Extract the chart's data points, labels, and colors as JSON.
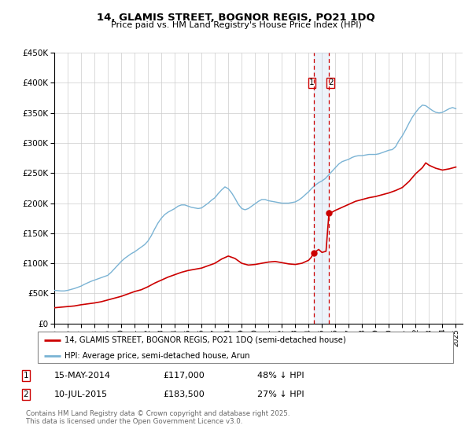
{
  "title": "14, GLAMIS STREET, BOGNOR REGIS, PO21 1DQ",
  "subtitle": "Price paid vs. HM Land Registry's House Price Index (HPI)",
  "legend_line1": "14, GLAMIS STREET, BOGNOR REGIS, PO21 1DQ (semi-detached house)",
  "legend_line2": "HPI: Average price, semi-detached house, Arun",
  "hpi_color": "#7ab3d4",
  "price_color": "#cc0000",
  "vline_color": "#cc0000",
  "vband_color": "#c6d9f1",
  "footnote": "Contains HM Land Registry data © Crown copyright and database right 2025.\nThis data is licensed under the Open Government Licence v3.0.",
  "transaction1_date": "15-MAY-2014",
  "transaction1_price": "£117,000",
  "transaction1_hpi": "48% ↓ HPI",
  "transaction1_year": 2014.37,
  "transaction1_price_val": 117000,
  "transaction2_date": "10-JUL-2015",
  "transaction2_price": "£183,500",
  "transaction2_hpi": "27% ↓ HPI",
  "transaction2_year": 2015.52,
  "transaction2_price_val": 183500,
  "ylim": [
    0,
    450000
  ],
  "yticks": [
    0,
    50000,
    100000,
    150000,
    200000,
    250000,
    300000,
    350000,
    400000,
    450000
  ],
  "xlim_start": 1995.0,
  "xlim_end": 2025.5,
  "background_color": "#ffffff",
  "grid_color": "#cccccc",
  "hpi_data": [
    [
      1995.0,
      55000
    ],
    [
      1995.25,
      54500
    ],
    [
      1995.5,
      54000
    ],
    [
      1995.75,
      54000
    ],
    [
      1996.0,
      55000
    ],
    [
      1996.25,
      56500
    ],
    [
      1996.5,
      58000
    ],
    [
      1996.75,
      60000
    ],
    [
      1997.0,
      62000
    ],
    [
      1997.25,
      65000
    ],
    [
      1997.5,
      67500
    ],
    [
      1997.75,
      70000
    ],
    [
      1998.0,
      72000
    ],
    [
      1998.25,
      74000
    ],
    [
      1998.5,
      76000
    ],
    [
      1998.75,
      78000
    ],
    [
      1999.0,
      80000
    ],
    [
      1999.25,
      85000
    ],
    [
      1999.5,
      91000
    ],
    [
      1999.75,
      97000
    ],
    [
      2000.0,
      103000
    ],
    [
      2000.25,
      108000
    ],
    [
      2000.5,
      112000
    ],
    [
      2000.75,
      116000
    ],
    [
      2001.0,
      119000
    ],
    [
      2001.25,
      123000
    ],
    [
      2001.5,
      127000
    ],
    [
      2001.75,
      131000
    ],
    [
      2002.0,
      137000
    ],
    [
      2002.25,
      146000
    ],
    [
      2002.5,
      157000
    ],
    [
      2002.75,
      167000
    ],
    [
      2003.0,
      175000
    ],
    [
      2003.25,
      181000
    ],
    [
      2003.5,
      185000
    ],
    [
      2003.75,
      188000
    ],
    [
      2004.0,
      191000
    ],
    [
      2004.25,
      195000
    ],
    [
      2004.5,
      197000
    ],
    [
      2004.75,
      197000
    ],
    [
      2005.0,
      195000
    ],
    [
      2005.25,
      193000
    ],
    [
      2005.5,
      192000
    ],
    [
      2005.75,
      191000
    ],
    [
      2006.0,
      192000
    ],
    [
      2006.25,
      196000
    ],
    [
      2006.5,
      200000
    ],
    [
      2006.75,
      205000
    ],
    [
      2007.0,
      209000
    ],
    [
      2007.25,
      216000
    ],
    [
      2007.5,
      222000
    ],
    [
      2007.75,
      227000
    ],
    [
      2008.0,
      224000
    ],
    [
      2008.25,
      217000
    ],
    [
      2008.5,
      208000
    ],
    [
      2008.75,
      198000
    ],
    [
      2009.0,
      191000
    ],
    [
      2009.25,
      189000
    ],
    [
      2009.5,
      191000
    ],
    [
      2009.75,
      195000
    ],
    [
      2010.0,
      199000
    ],
    [
      2010.25,
      203000
    ],
    [
      2010.5,
      206000
    ],
    [
      2010.75,
      206000
    ],
    [
      2011.0,
      204000
    ],
    [
      2011.25,
      203000
    ],
    [
      2011.5,
      202000
    ],
    [
      2011.75,
      201000
    ],
    [
      2012.0,
      200000
    ],
    [
      2012.25,
      200000
    ],
    [
      2012.5,
      200000
    ],
    [
      2012.75,
      201000
    ],
    [
      2013.0,
      202000
    ],
    [
      2013.25,
      205000
    ],
    [
      2013.5,
      209000
    ],
    [
      2013.75,
      214000
    ],
    [
      2014.0,
      219000
    ],
    [
      2014.25,
      225000
    ],
    [
      2014.5,
      230000
    ],
    [
      2014.75,
      234000
    ],
    [
      2015.0,
      237000
    ],
    [
      2015.25,
      241000
    ],
    [
      2015.5,
      247000
    ],
    [
      2015.75,
      253000
    ],
    [
      2016.0,
      259000
    ],
    [
      2016.25,
      265000
    ],
    [
      2016.5,
      269000
    ],
    [
      2016.75,
      271000
    ],
    [
      2017.0,
      273000
    ],
    [
      2017.25,
      276000
    ],
    [
      2017.5,
      278000
    ],
    [
      2017.75,
      279000
    ],
    [
      2018.0,
      279000
    ],
    [
      2018.25,
      280000
    ],
    [
      2018.5,
      281000
    ],
    [
      2018.75,
      281000
    ],
    [
      2019.0,
      281000
    ],
    [
      2019.25,
      282000
    ],
    [
      2019.5,
      284000
    ],
    [
      2019.75,
      286000
    ],
    [
      2020.0,
      288000
    ],
    [
      2020.25,
      289000
    ],
    [
      2020.5,
      294000
    ],
    [
      2020.75,
      304000
    ],
    [
      2021.0,
      312000
    ],
    [
      2021.25,
      322000
    ],
    [
      2021.5,
      333000
    ],
    [
      2021.75,
      343000
    ],
    [
      2022.0,
      351000
    ],
    [
      2022.25,
      358000
    ],
    [
      2022.5,
      363000
    ],
    [
      2022.75,
      362000
    ],
    [
      2023.0,
      358000
    ],
    [
      2023.25,
      354000
    ],
    [
      2023.5,
      351000
    ],
    [
      2023.75,
      350000
    ],
    [
      2024.0,
      351000
    ],
    [
      2024.25,
      354000
    ],
    [
      2024.5,
      357000
    ],
    [
      2024.75,
      359000
    ],
    [
      2025.0,
      357000
    ]
  ],
  "price_data": [
    [
      1995.0,
      26000
    ],
    [
      1995.5,
      27000
    ],
    [
      1996.0,
      28000
    ],
    [
      1996.5,
      29000
    ],
    [
      1997.0,
      31000
    ],
    [
      1997.5,
      32500
    ],
    [
      1998.0,
      34000
    ],
    [
      1998.5,
      36000
    ],
    [
      1999.0,
      39000
    ],
    [
      1999.5,
      42000
    ],
    [
      2000.0,
      45000
    ],
    [
      2000.5,
      49000
    ],
    [
      2001.0,
      53000
    ],
    [
      2001.5,
      56000
    ],
    [
      2002.0,
      61000
    ],
    [
      2002.5,
      67000
    ],
    [
      2003.0,
      72000
    ],
    [
      2003.5,
      77000
    ],
    [
      2004.0,
      81000
    ],
    [
      2004.5,
      85000
    ],
    [
      2005.0,
      88000
    ],
    [
      2005.5,
      90000
    ],
    [
      2006.0,
      92000
    ],
    [
      2006.5,
      96000
    ],
    [
      2007.0,
      100000
    ],
    [
      2007.5,
      107000
    ],
    [
      2008.0,
      112000
    ],
    [
      2008.5,
      108000
    ],
    [
      2009.0,
      100000
    ],
    [
      2009.5,
      97000
    ],
    [
      2010.0,
      98000
    ],
    [
      2010.5,
      100000
    ],
    [
      2011.0,
      102000
    ],
    [
      2011.5,
      103000
    ],
    [
      2012.0,
      101000
    ],
    [
      2012.5,
      99000
    ],
    [
      2013.0,
      98000
    ],
    [
      2013.5,
      100000
    ],
    [
      2014.0,
      105000
    ],
    [
      2014.2,
      110000
    ],
    [
      2014.37,
      117000
    ],
    [
      2014.5,
      119000
    ],
    [
      2014.75,
      123000
    ],
    [
      2015.0,
      118000
    ],
    [
      2015.3,
      120000
    ],
    [
      2015.52,
      183500
    ],
    [
      2015.75,
      185000
    ],
    [
      2016.0,
      188000
    ],
    [
      2016.5,
      193000
    ],
    [
      2017.0,
      198000
    ],
    [
      2017.5,
      203000
    ],
    [
      2018.0,
      206000
    ],
    [
      2018.5,
      209000
    ],
    [
      2019.0,
      211000
    ],
    [
      2019.5,
      214000
    ],
    [
      2020.0,
      217000
    ],
    [
      2020.5,
      221000
    ],
    [
      2021.0,
      226000
    ],
    [
      2021.5,
      236000
    ],
    [
      2022.0,
      249000
    ],
    [
      2022.5,
      259000
    ],
    [
      2022.75,
      267000
    ],
    [
      2023.0,
      263000
    ],
    [
      2023.5,
      258000
    ],
    [
      2024.0,
      255000
    ],
    [
      2024.5,
      257000
    ],
    [
      2025.0,
      260000
    ]
  ]
}
